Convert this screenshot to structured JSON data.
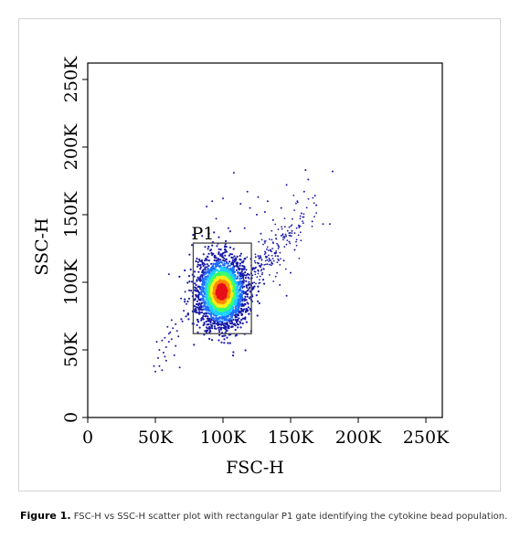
{
  "caption": {
    "label": "Figure 1.",
    "text": "FSC-H vs SSC-H scatter plot with rectangular P1 gate identifying the cytokine bead population."
  },
  "chart_data": {
    "type": "scatter",
    "title": "",
    "xlabel": "FSC-H",
    "ylabel": "SSC-H",
    "xlim": [
      0,
      262144
    ],
    "ylim": [
      0,
      262144
    ],
    "xticks": [
      {
        "value": 0,
        "label": "0"
      },
      {
        "value": 50000,
        "label": "50K"
      },
      {
        "value": 100000,
        "label": "100K"
      },
      {
        "value": 150000,
        "label": "150K"
      },
      {
        "value": 200000,
        "label": "200K"
      },
      {
        "value": 250000,
        "label": "250K"
      }
    ],
    "yticks": [
      {
        "value": 0,
        "label": "0"
      },
      {
        "value": 50000,
        "label": "50K"
      },
      {
        "value": 100000,
        "label": "100K"
      },
      {
        "value": 150000,
        "label": "150K"
      },
      {
        "value": 200000,
        "label": "200K"
      },
      {
        "value": 250000,
        "label": "250K"
      }
    ],
    "grid": false,
    "gate": {
      "name": "P1",
      "x": [
        78000,
        121000
      ],
      "y": [
        62000,
        129000
      ]
    },
    "density_colors": [
      "#1a1aa8",
      "#1e6fff",
      "#19d0ff",
      "#3cff6a",
      "#ffee1a",
      "#ff8a00",
      "#e8101a"
    ],
    "main_population": {
      "center": [
        99000,
        93000
      ],
      "spread": [
        9000,
        13000
      ],
      "count": 2600
    },
    "trail_population": {
      "center": [
        133000,
        118000
      ],
      "spread": [
        17000,
        19000
      ],
      "count": 220
    },
    "low_outliers": [
      [
        50000,
        34000
      ],
      [
        53000,
        38000
      ],
      [
        55000,
        35000
      ],
      [
        52000,
        44000
      ],
      [
        56000,
        48000
      ],
      [
        58000,
        52000
      ],
      [
        60000,
        56000
      ],
      [
        57000,
        59000
      ],
      [
        61000,
        63000
      ],
      [
        63000,
        66000
      ],
      [
        59000,
        67000
      ],
      [
        62000,
        72000
      ],
      [
        65000,
        69000
      ],
      [
        55000,
        57000
      ],
      [
        68000,
        37000
      ],
      [
        64000,
        46000
      ],
      [
        60000,
        62000
      ],
      [
        51000,
        56000
      ],
      [
        67000,
        60000
      ],
      [
        70000,
        71000
      ],
      [
        65000,
        53000
      ],
      [
        58000,
        42000
      ],
      [
        66000,
        64000
      ],
      [
        62000,
        58000
      ],
      [
        53000,
        50000
      ],
      [
        71000,
        79000
      ],
      [
        73000,
        84000
      ],
      [
        69000,
        88000
      ],
      [
        74000,
        76000
      ],
      [
        72000,
        93000
      ],
      [
        49000,
        38000
      ],
      [
        57000,
        45000
      ]
    ],
    "high_outliers": [
      [
        100000,
        162000
      ],
      [
        108000,
        181000
      ],
      [
        113000,
        158000
      ],
      [
        120000,
        155000
      ],
      [
        125000,
        150000
      ],
      [
        131000,
        152000
      ],
      [
        137000,
        146000
      ],
      [
        143000,
        155000
      ],
      [
        147000,
        172000
      ],
      [
        151000,
        138000
      ],
      [
        155000,
        160000
      ],
      [
        158000,
        151000
      ],
      [
        160000,
        167000
      ],
      [
        161000,
        183000
      ],
      [
        163000,
        176000
      ],
      [
        166000,
        145000
      ],
      [
        169000,
        157000
      ],
      [
        174000,
        143000
      ],
      [
        179000,
        143000
      ],
      [
        181000,
        182000
      ],
      [
        168000,
        164000
      ],
      [
        156000,
        142000
      ],
      [
        149000,
        130000
      ],
      [
        153000,
        124000
      ],
      [
        145000,
        116000
      ],
      [
        139000,
        135000
      ],
      [
        95000,
        147000
      ],
      [
        92000,
        160000
      ],
      [
        88000,
        156000
      ],
      [
        104000,
        140000
      ],
      [
        116000,
        140000
      ],
      [
        128000,
        136000
      ],
      [
        135000,
        124000
      ],
      [
        150000,
        107000
      ],
      [
        142000,
        98000
      ],
      [
        147000,
        90000
      ],
      [
        60000,
        106000
      ],
      [
        126000,
        163000
      ],
      [
        133000,
        160000
      ],
      [
        118000,
        167000
      ]
    ]
  }
}
